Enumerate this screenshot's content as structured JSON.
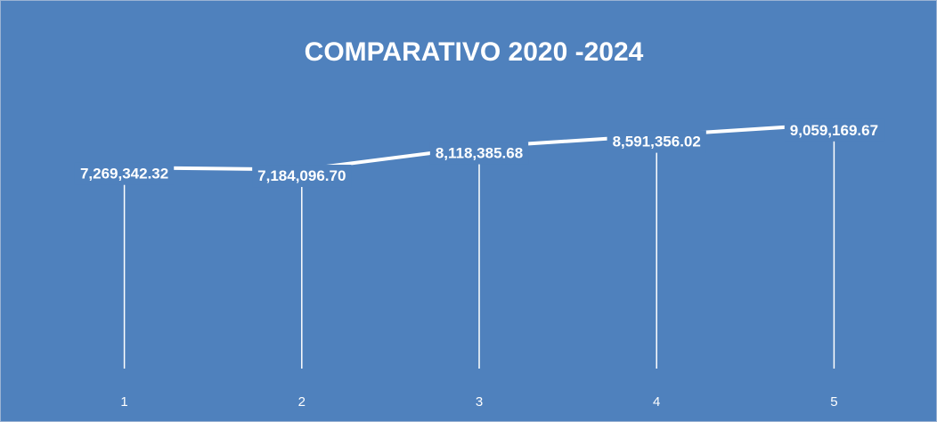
{
  "chart_data": {
    "type": "line",
    "title": "COMPARATIVO 2020 -2024",
    "categories": [
      "1",
      "2",
      "3",
      "4",
      "5"
    ],
    "values": [
      7269342.32,
      7184096.7,
      8118385.68,
      8591356.02,
      9059169.67
    ],
    "value_labels": [
      "7,269,342.32",
      "7,184,096.70",
      "8,118,385.68",
      "8,591,356.02",
      "9,059,169.67"
    ],
    "color": "#ffffff",
    "background": "#4f81bd",
    "ylim": [
      -1000000,
      10500000
    ]
  }
}
